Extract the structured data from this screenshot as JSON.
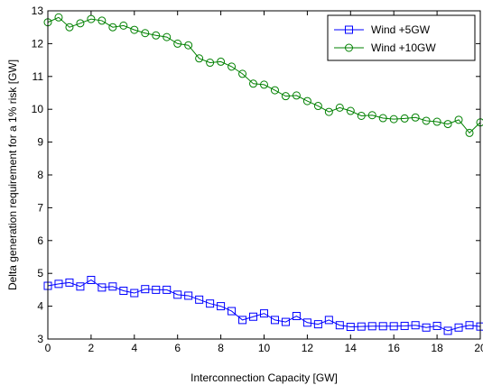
{
  "chart_data": {
    "type": "line",
    "xlabel": "Interconnection Capacity [GW]",
    "ylabel": "Delta generation requirement for a 1% risk [GW]",
    "xlim": [
      0,
      20
    ],
    "ylim": [
      3,
      13
    ],
    "xticks": [
      0,
      2,
      4,
      6,
      8,
      10,
      12,
      14,
      16,
      18,
      20
    ],
    "yticks": [
      3,
      4,
      5,
      6,
      7,
      8,
      9,
      10,
      11,
      12,
      13
    ],
    "grid": false,
    "legend_position": "top-right",
    "series": [
      {
        "name": "Wind +5GW",
        "color": "#0000ff",
        "marker": "square",
        "x": [
          0,
          0.5,
          1,
          1.5,
          2,
          2.5,
          3,
          3.5,
          4,
          4.5,
          5,
          5.5,
          6,
          6.5,
          7,
          7.5,
          8,
          8.5,
          9,
          9.5,
          10,
          10.5,
          11,
          11.5,
          12,
          12.5,
          13,
          13.5,
          14,
          14.5,
          15,
          15.5,
          16,
          16.5,
          17,
          17.5,
          18,
          18.5,
          19,
          19.5,
          20
        ],
        "values": [
          4.62,
          4.68,
          4.72,
          4.6,
          4.8,
          4.57,
          4.6,
          4.47,
          4.4,
          4.52,
          4.5,
          4.5,
          4.35,
          4.32,
          4.2,
          4.08,
          4.0,
          3.85,
          3.58,
          3.68,
          3.78,
          3.58,
          3.52,
          3.7,
          3.5,
          3.45,
          3.58,
          3.42,
          3.37,
          3.38,
          3.39,
          3.39,
          3.39,
          3.4,
          3.42,
          3.35,
          3.4,
          3.25,
          3.35,
          3.42,
          3.38
        ]
      },
      {
        "name": "Wind +10GW",
        "color": "#008000",
        "marker": "circle",
        "x": [
          0,
          0.5,
          1,
          1.5,
          2,
          2.5,
          3,
          3.5,
          4,
          4.5,
          5,
          5.5,
          6,
          6.5,
          7,
          7.5,
          8,
          8.5,
          9,
          9.5,
          10,
          10.5,
          11,
          11.5,
          12,
          12.5,
          13,
          13.5,
          14,
          14.5,
          15,
          15.5,
          16,
          16.5,
          17,
          17.5,
          18,
          18.5,
          19,
          19.5,
          20
        ],
        "values": [
          12.65,
          12.8,
          12.5,
          12.62,
          12.75,
          12.7,
          12.5,
          12.55,
          12.42,
          12.32,
          12.25,
          12.2,
          12.0,
          11.95,
          11.55,
          11.42,
          11.45,
          11.3,
          11.08,
          10.78,
          10.75,
          10.58,
          10.4,
          10.42,
          10.25,
          10.1,
          9.92,
          10.05,
          9.95,
          9.8,
          9.82,
          9.73,
          9.7,
          9.72,
          9.75,
          9.65,
          9.62,
          9.55,
          9.68,
          9.28,
          9.6
        ]
      }
    ]
  }
}
